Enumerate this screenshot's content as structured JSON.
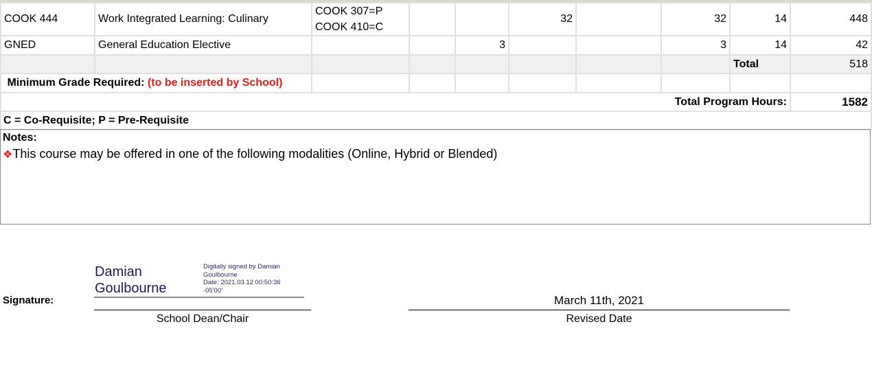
{
  "rows": [
    {
      "code": "COOK 444",
      "title": "Work Integrated Learning: Culinary",
      "req1": "COOK 307=P",
      "req2": "COOK 410=C",
      "c5": "32",
      "c8": "32",
      "c9": "14",
      "c10": "448"
    },
    {
      "code": "GNED",
      "title": "General Education Elective",
      "c4": "3",
      "c8": "3",
      "c9": "14",
      "c10": "42"
    }
  ],
  "total_label": "Total",
  "total_value": "518",
  "min_grade_label": "Minimum  Grade  Required:",
  "min_grade_note": "(to be inserted by School)",
  "program_hours_label": "Total Program Hours:",
  "program_hours_value": "1582",
  "legend": "C = Co-Requisite; P = Pre-Requisite",
  "notes": {
    "heading": "Notes:",
    "icon": "red-diamond-bullet",
    "text": "This course may be offered in one of the following modalities (Online, Hybrid or Blended)"
  },
  "signature": {
    "label": "Signature:",
    "name_line1": "Damian",
    "name_line2": "Goulbourne",
    "meta": [
      "Digitally signed by Damian",
      "Goulbourne",
      "Date: 2021.03.12 00:50:36",
      "-05'00'"
    ],
    "role": "School Dean/Chair",
    "date": "March 11th, 2021",
    "date_label": "Revised Date"
  }
}
